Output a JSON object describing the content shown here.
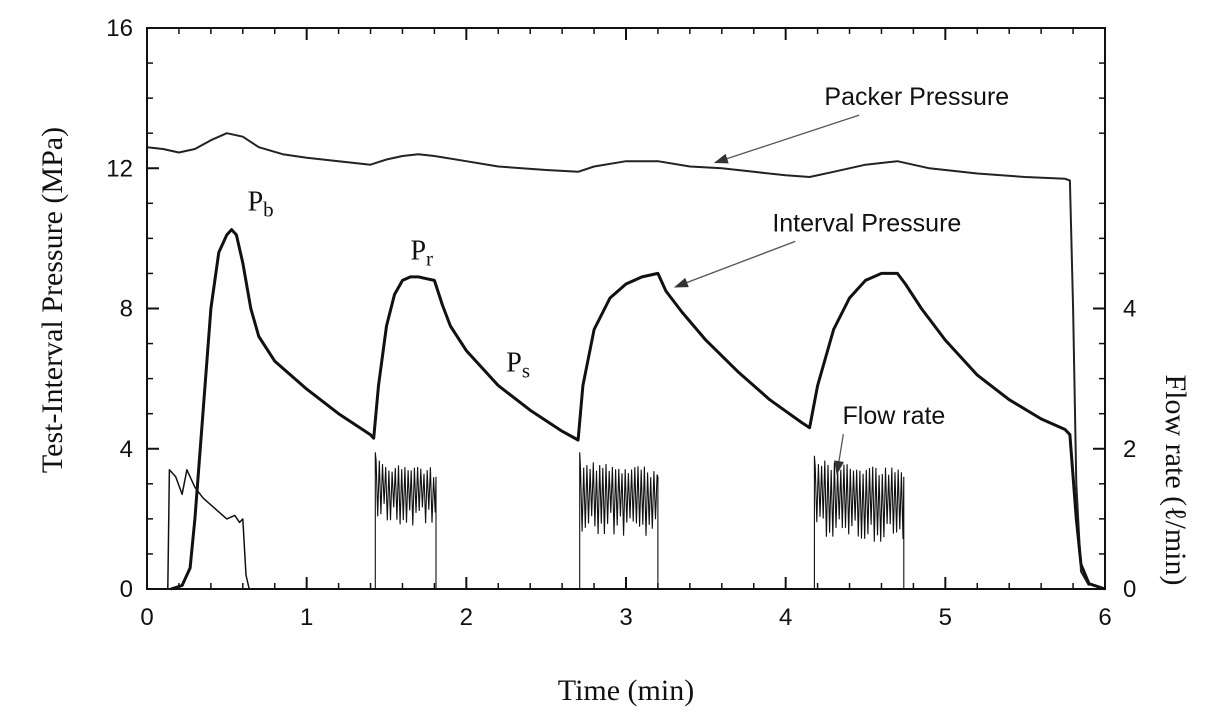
{
  "chart_data": {
    "type": "line",
    "xlabel": "Time (min)",
    "ylabel": "Test-Interval Pressure (MPa)",
    "y2label": "Flow rate (ℓ/min)",
    "xlim": [
      0,
      6
    ],
    "ylim": [
      0,
      16
    ],
    "y2lim": [
      0,
      8
    ],
    "x_ticks": [
      "0",
      "1",
      "2",
      "3",
      "4",
      "5",
      "6"
    ],
    "y_ticks": [
      "0",
      "4",
      "8",
      "12",
      "16"
    ],
    "y2_ticks": [
      "0",
      "2",
      "4"
    ],
    "grid": false,
    "series": [
      {
        "name": "Packer Pressure",
        "axis": "left",
        "color": "#222222",
        "points": [
          [
            0,
            12.6
          ],
          [
            0.1,
            12.55
          ],
          [
            0.2,
            12.45
          ],
          [
            0.3,
            12.55
          ],
          [
            0.4,
            12.8
          ],
          [
            0.5,
            13.0
          ],
          [
            0.6,
            12.9
          ],
          [
            0.7,
            12.6
          ],
          [
            0.85,
            12.4
          ],
          [
            1.0,
            12.3
          ],
          [
            1.2,
            12.2
          ],
          [
            1.4,
            12.1
          ],
          [
            1.5,
            12.25
          ],
          [
            1.6,
            12.35
          ],
          [
            1.7,
            12.4
          ],
          [
            1.8,
            12.35
          ],
          [
            2.0,
            12.2
          ],
          [
            2.2,
            12.05
          ],
          [
            2.5,
            11.95
          ],
          [
            2.7,
            11.9
          ],
          [
            2.8,
            12.05
          ],
          [
            3.0,
            12.2
          ],
          [
            3.2,
            12.2
          ],
          [
            3.4,
            12.05
          ],
          [
            3.6,
            12.0
          ],
          [
            3.8,
            11.9
          ],
          [
            4.0,
            11.8
          ],
          [
            4.15,
            11.75
          ],
          [
            4.3,
            11.9
          ],
          [
            4.5,
            12.1
          ],
          [
            4.7,
            12.2
          ],
          [
            4.9,
            12.0
          ],
          [
            5.2,
            11.85
          ],
          [
            5.5,
            11.75
          ],
          [
            5.75,
            11.7
          ],
          [
            5.78,
            11.65
          ],
          [
            5.8,
            8.0
          ],
          [
            5.82,
            3.0
          ],
          [
            5.85,
            0.5
          ],
          [
            5.9,
            0.1
          ]
        ]
      },
      {
        "name": "Interval Pressure",
        "axis": "left",
        "color": "#111111",
        "points": [
          [
            0.15,
            0
          ],
          [
            0.22,
            0.1
          ],
          [
            0.27,
            0.6
          ],
          [
            0.3,
            2.0
          ],
          [
            0.35,
            5.0
          ],
          [
            0.4,
            8.0
          ],
          [
            0.45,
            9.6
          ],
          [
            0.5,
            10.1
          ],
          [
            0.53,
            10.25
          ],
          [
            0.56,
            10.1
          ],
          [
            0.6,
            9.3
          ],
          [
            0.65,
            8.0
          ],
          [
            0.7,
            7.2
          ],
          [
            0.8,
            6.5
          ],
          [
            0.9,
            6.1
          ],
          [
            1.0,
            5.7
          ],
          [
            1.2,
            5.0
          ],
          [
            1.4,
            4.4
          ],
          [
            1.42,
            4.3
          ],
          [
            1.45,
            5.8
          ],
          [
            1.5,
            7.5
          ],
          [
            1.55,
            8.4
          ],
          [
            1.6,
            8.8
          ],
          [
            1.65,
            8.9
          ],
          [
            1.7,
            8.9
          ],
          [
            1.75,
            8.85
          ],
          [
            1.8,
            8.8
          ],
          [
            1.85,
            8.1
          ],
          [
            1.9,
            7.5
          ],
          [
            2.0,
            6.8
          ],
          [
            2.2,
            5.8
          ],
          [
            2.4,
            5.1
          ],
          [
            2.6,
            4.5
          ],
          [
            2.7,
            4.25
          ],
          [
            2.73,
            5.8
          ],
          [
            2.8,
            7.4
          ],
          [
            2.9,
            8.3
          ],
          [
            3.0,
            8.7
          ],
          [
            3.1,
            8.9
          ],
          [
            3.2,
            9.0
          ],
          [
            3.25,
            8.5
          ],
          [
            3.35,
            7.9
          ],
          [
            3.5,
            7.1
          ],
          [
            3.7,
            6.2
          ],
          [
            3.9,
            5.4
          ],
          [
            4.1,
            4.75
          ],
          [
            4.15,
            4.6
          ],
          [
            4.2,
            5.8
          ],
          [
            4.3,
            7.4
          ],
          [
            4.4,
            8.3
          ],
          [
            4.5,
            8.8
          ],
          [
            4.6,
            9.0
          ],
          [
            4.7,
            9.0
          ],
          [
            4.75,
            8.7
          ],
          [
            4.85,
            8.0
          ],
          [
            5.0,
            7.1
          ],
          [
            5.2,
            6.1
          ],
          [
            5.4,
            5.4
          ],
          [
            5.6,
            4.85
          ],
          [
            5.75,
            4.55
          ],
          [
            5.78,
            4.4
          ],
          [
            5.82,
            2.0
          ],
          [
            5.85,
            0.7
          ],
          [
            5.9,
            0.15
          ],
          [
            6.0,
            0.0
          ]
        ]
      },
      {
        "name": "Flow rate",
        "axis": "right",
        "color": "#111111",
        "points": [
          [
            0.1,
            0
          ],
          [
            0.13,
            0
          ],
          [
            0.14,
            1.7
          ],
          [
            0.18,
            1.6
          ],
          [
            0.22,
            1.35
          ],
          [
            0.25,
            1.7
          ],
          [
            0.3,
            1.45
          ],
          [
            0.35,
            1.3
          ],
          [
            0.4,
            1.2
          ],
          [
            0.45,
            1.1
          ],
          [
            0.5,
            1.0
          ],
          [
            0.55,
            1.05
          ],
          [
            0.58,
            0.95
          ],
          [
            0.6,
            1.0
          ],
          [
            0.62,
            0.2
          ],
          [
            0.64,
            0
          ]
        ],
        "bursts": [
          {
            "x_start": 1.43,
            "x_end": 1.81,
            "peak": 1.95,
            "low": 0.9,
            "high": 1.7
          },
          {
            "x_start": 2.71,
            "x_end": 3.2,
            "peak": 1.95,
            "low": 0.8,
            "high": 1.7
          },
          {
            "x_start": 4.18,
            "x_end": 4.74,
            "peak": 1.9,
            "low": 0.7,
            "high": 1.7
          }
        ]
      }
    ],
    "annotations": [
      {
        "text": "Packer Pressure",
        "arrow_to": [
          3.55,
          12.15
        ],
        "text_at": [
          5.4,
          13.8
        ]
      },
      {
        "text": "Interval Pressure",
        "arrow_to": [
          3.3,
          8.6
        ],
        "text_at": [
          5.1,
          10.2
        ]
      },
      {
        "text": "Flow rate",
        "arrow_to": [
          4.32,
          3.25
        ],
        "text_at": [
          5.0,
          4.7
        ]
      }
    ],
    "point_labels": [
      {
        "base": "P",
        "sub": "b",
        "at": [
          0.63,
          10.8
        ]
      },
      {
        "base": "P",
        "sub": "r",
        "at": [
          1.65,
          9.4
        ]
      },
      {
        "base": "P",
        "sub": "s",
        "at": [
          2.25,
          6.2
        ]
      }
    ]
  }
}
